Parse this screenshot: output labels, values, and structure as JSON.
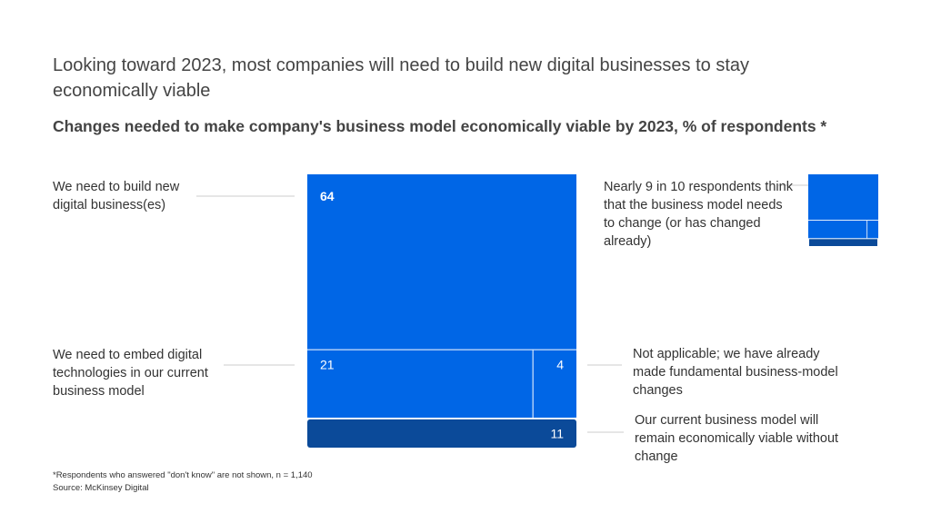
{
  "title": "Looking toward 2023, most companies will need to build new digital businesses to stay economically viable",
  "subtitle": "Changes needed to make company's business model economically viable by 2023, % of respondents *",
  "note": "Nearly 9 in 10 respondents think that the business model needs to change (or has changed already)",
  "footnote": "*Respondents who answered \"don't know\" are not shown, n = 1,140",
  "source": "Source: McKinsey Digital",
  "colors": {
    "bright_blue": "#0066E6",
    "dark_blue": "#0B4A99",
    "leader_line": "#CCCCCC"
  },
  "chart_data": {
    "type": "treemap",
    "title": "Changes needed to make company's business model economically viable by 2023, % of respondents *",
    "unit": "% of respondents",
    "segments": [
      {
        "label": "We need to build new digital business(es)",
        "value": 64,
        "color": "#0066E6"
      },
      {
        "label": "We need to embed digital technologies in our current business model",
        "value": 21,
        "color": "#0066E6"
      },
      {
        "label": "Not applicable; we have already made fundamental business-model changes",
        "value": 4,
        "color": "#0066E6"
      },
      {
        "label": "Our current business model will remain economically viable without change",
        "value": 11,
        "color": "#0B4A99"
      }
    ]
  }
}
